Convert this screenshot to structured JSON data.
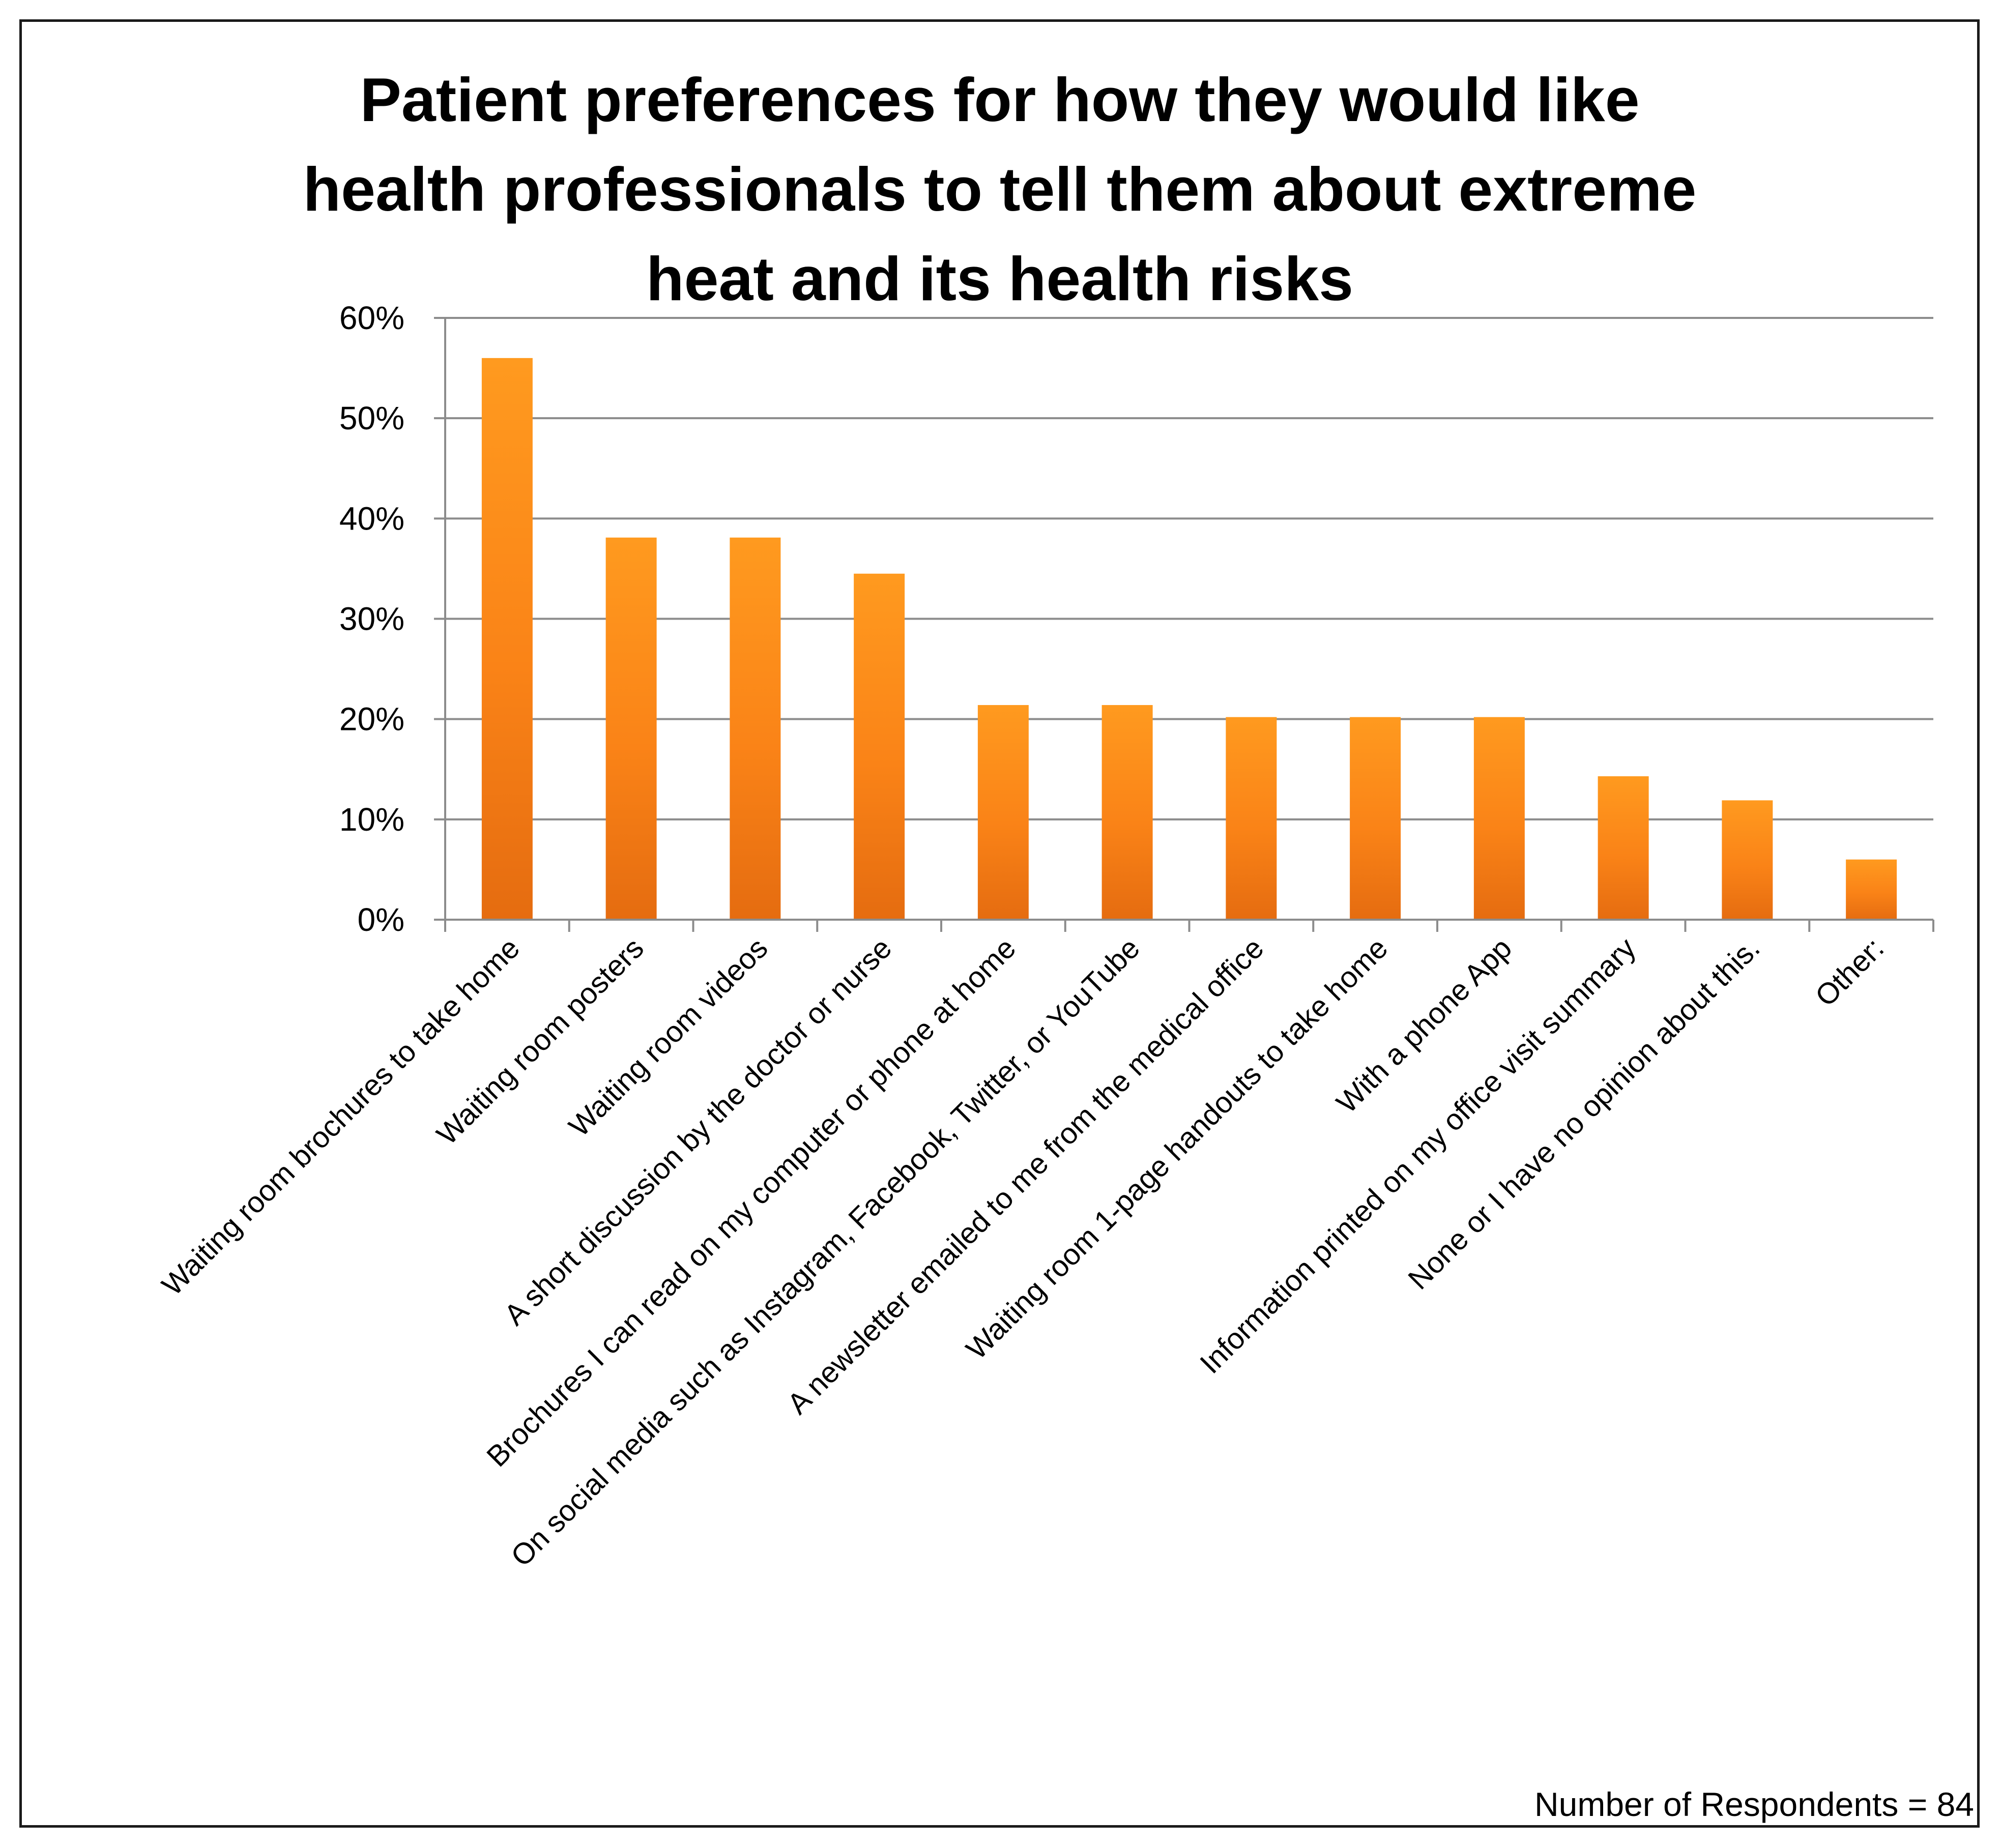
{
  "chart_data": {
    "type": "bar",
    "title_lines": [
      "Patient preferences for how they would like",
      "health professionals to tell them about extreme",
      "heat and its health risks"
    ],
    "categories": [
      "Waiting room brochures to take home",
      "Waiting room posters",
      "Waiting room videos",
      "A short discussion by the doctor or nurse",
      "Brochures I can read on my computer or phone at home",
      "On social media such as Instagram, Facebook, Twitter, or YouTube",
      "A newsletter emailed to me from the medical office",
      "Waiting room 1-page handouts to take home",
      "With a phone App",
      "Information printed on my office visit summary",
      "None or I have no opinion about this.",
      "Other:"
    ],
    "values": [
      56,
      38.1,
      38.1,
      34.5,
      21.4,
      21.4,
      20.2,
      20.2,
      20.2,
      14.3,
      11.9,
      6
    ],
    "ylim": [
      0,
      60
    ],
    "yticks": [
      0,
      10,
      20,
      30,
      40,
      50,
      60
    ],
    "ytick_labels": [
      "0%",
      "10%",
      "20%",
      "30%",
      "40%",
      "50%",
      "60%"
    ],
    "xlabel": "",
    "ylabel": "",
    "grid": true,
    "legend": "none",
    "bar_color_top": "#FF9A1F",
    "bar_color_mid": "#FA8317",
    "bar_color_bottom": "#E56C10",
    "gridline_color": "#8C8C8C",
    "annotation": "Number of Respondents = 84"
  }
}
